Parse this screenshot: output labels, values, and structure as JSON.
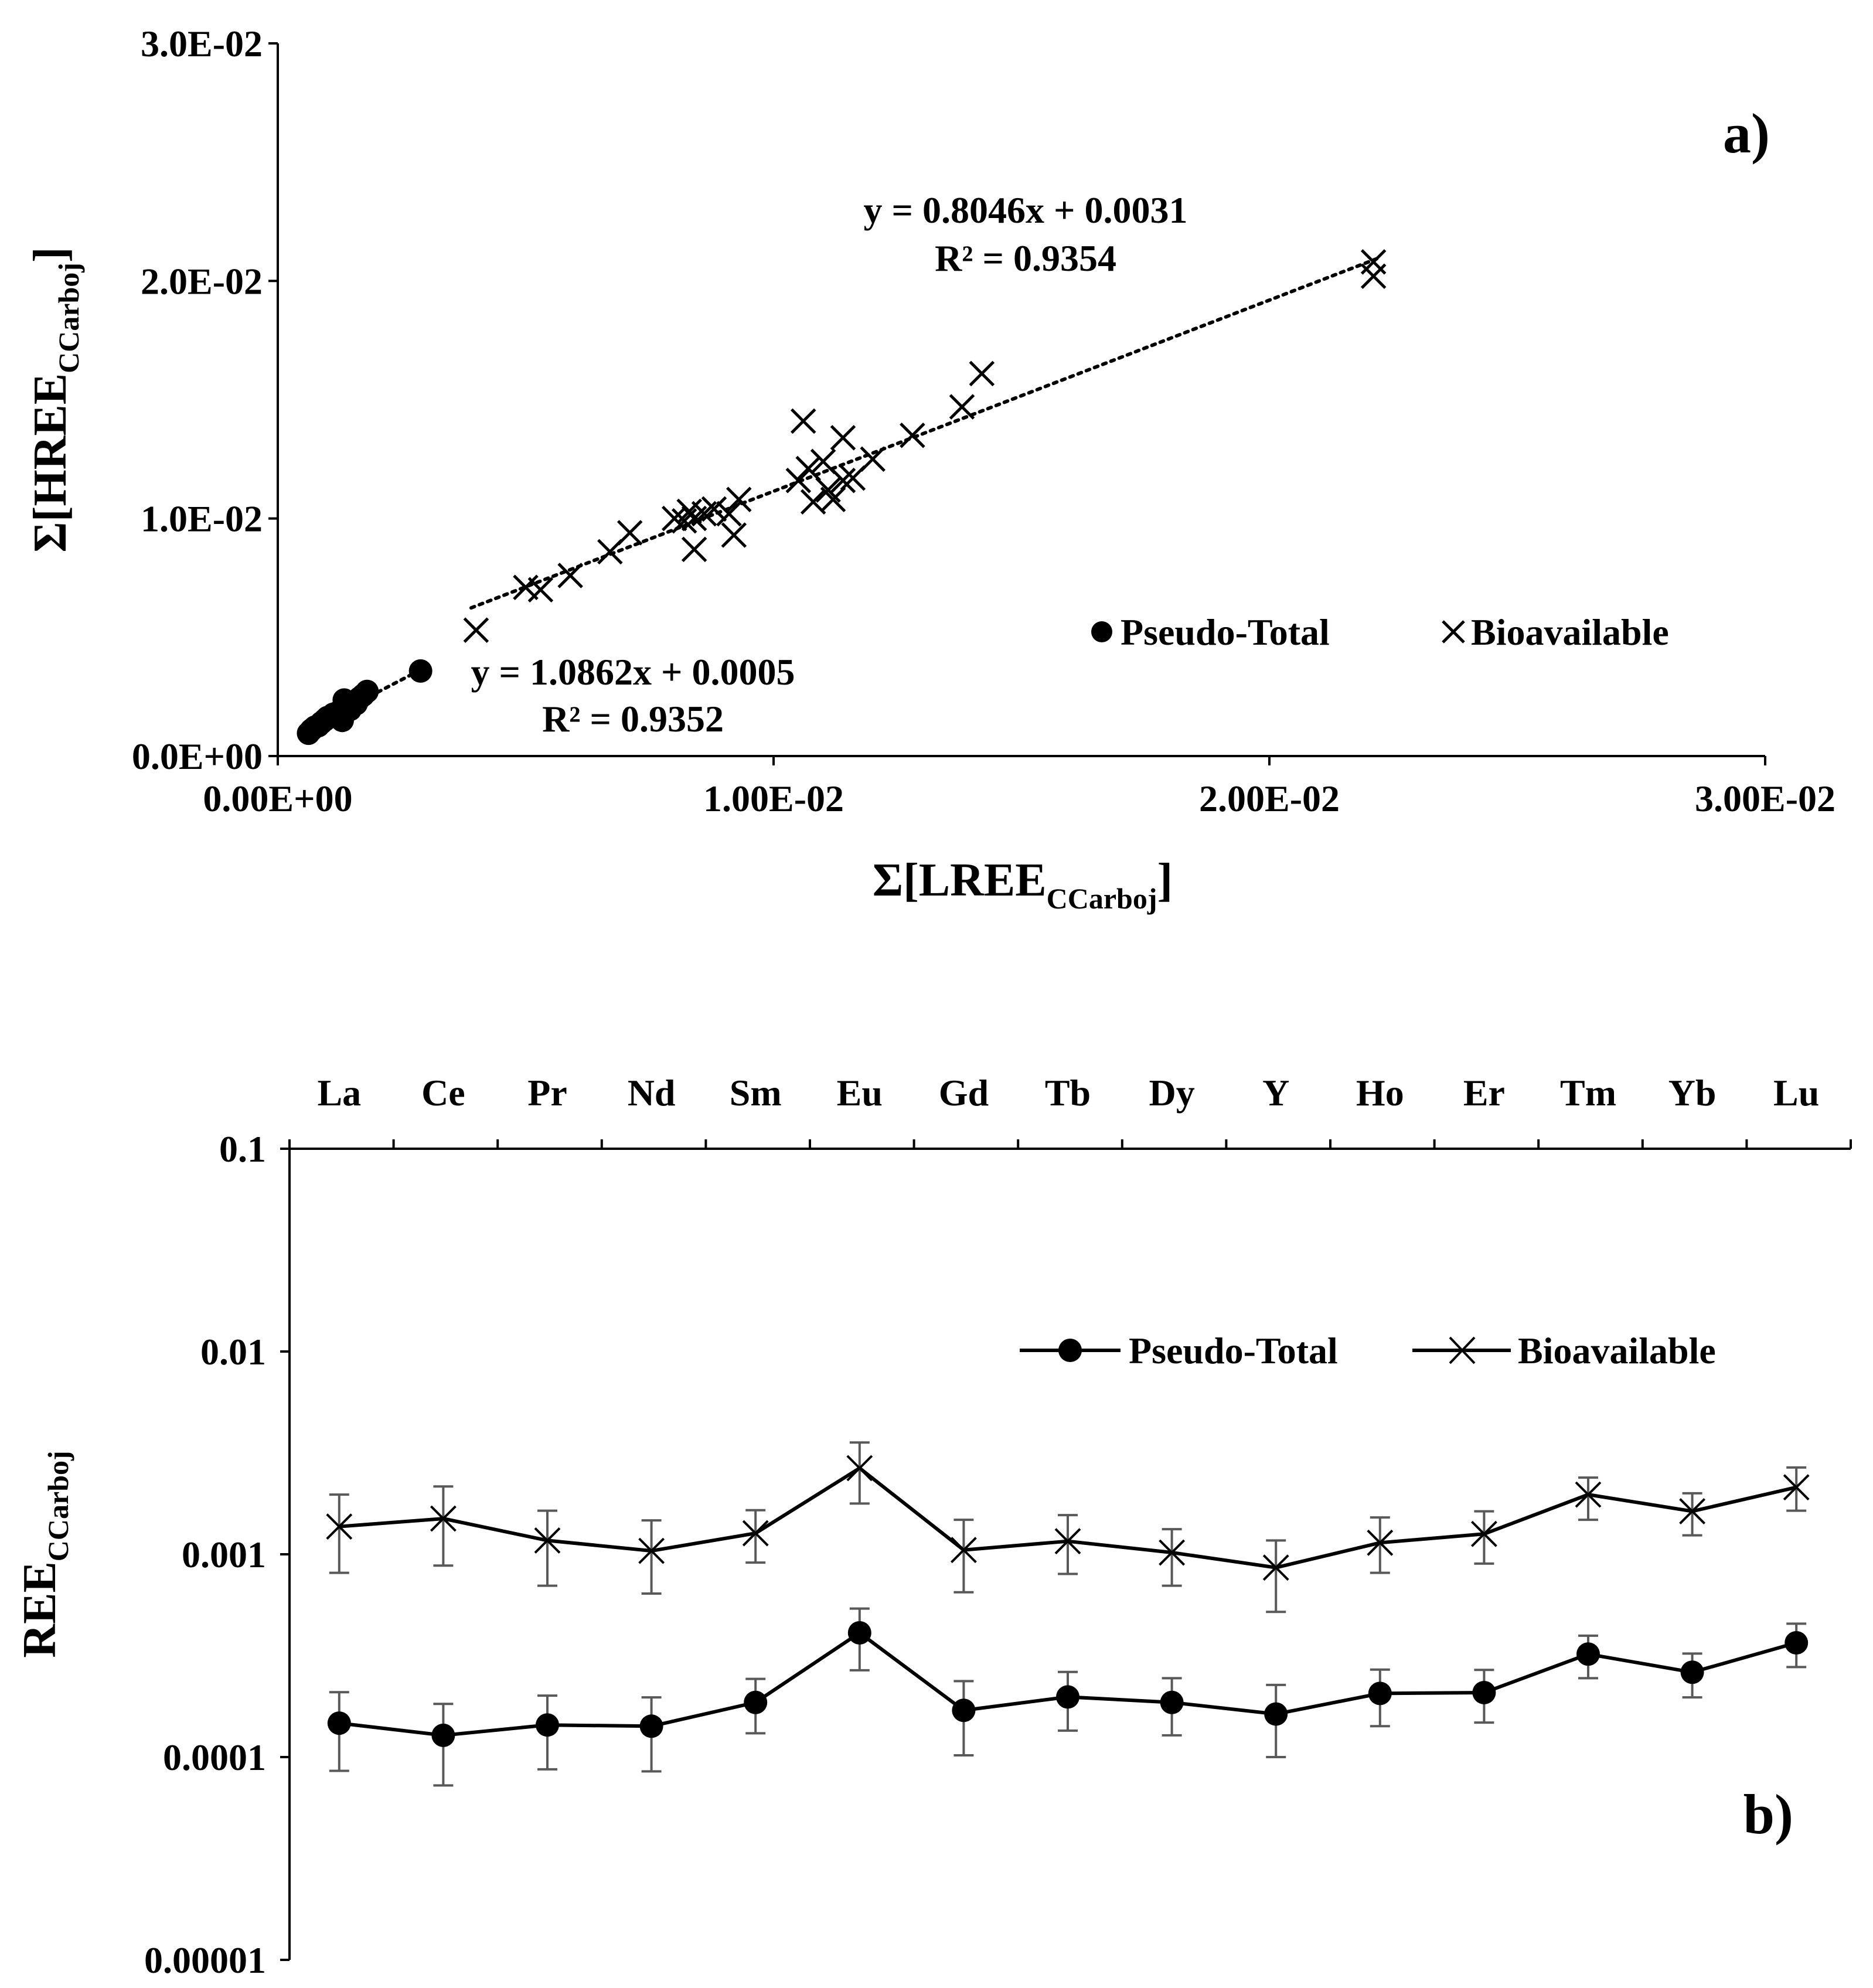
{
  "colors": {
    "ink": "#000000",
    "errorbar": "#595959",
    "background": "#ffffff"
  },
  "chart_data": [
    {
      "panel": "a)",
      "type": "scatter",
      "xlabel": "Σ[LREE",
      "xlabel_sub": "CCarboj",
      "xlabel_close": "]",
      "ylabel": "Σ[HREE",
      "ylabel_sub": "CCarboj",
      "ylabel_close": "]",
      "xlim": [
        0,
        0.03
      ],
      "ylim": [
        0,
        0.03
      ],
      "xticks": [
        0,
        0.01,
        0.02,
        0.03
      ],
      "xtick_labels": [
        "0.00E+00",
        "1.00E-02",
        "2.00E-02",
        "3.00E-02"
      ],
      "yticks": [
        0,
        0.01,
        0.02,
        0.03
      ],
      "ytick_labels": [
        "0.0E+00",
        "1.0E-02",
        "2.0E-02",
        "3.0E-02"
      ],
      "legend_position": "right, middle",
      "series": [
        {
          "name": "Pseudo-Total",
          "marker": "circle",
          "trendline": {
            "equation": "y = 1.0862x + 0.0005",
            "r2": "R² = 0.9352",
            "slope": 1.0862,
            "intercept": 0.0005,
            "x_range": [
              0.0006,
              0.0029
            ]
          },
          "points": [
            [
              0.00062,
              0.00096
            ],
            [
              0.00068,
              0.0011
            ],
            [
              0.00075,
              0.00122
            ],
            [
              0.00082,
              0.00128
            ],
            [
              0.00088,
              0.0014
            ],
            [
              0.00095,
              0.00152
            ],
            [
              0.001,
              0.00162
            ],
            [
              0.00108,
              0.00168
            ],
            [
              0.00112,
              0.00176
            ],
            [
              0.0012,
              0.00182
            ],
            [
              0.00126,
              0.0019
            ],
            [
              0.0013,
              0.0015
            ],
            [
              0.00134,
              0.00236
            ],
            [
              0.0014,
              0.0021
            ],
            [
              0.00146,
              0.00196
            ],
            [
              0.00152,
              0.00224
            ],
            [
              0.00158,
              0.0022
            ],
            [
              0.00165,
              0.00244
            ],
            [
              0.00172,
              0.00256
            ],
            [
              0.0018,
              0.00272
            ],
            [
              0.00288,
              0.00358
            ]
          ]
        },
        {
          "name": "Bioavailable",
          "marker": "x",
          "trendline": {
            "equation": "y = 0.8046x + 0.0031",
            "r2": "R² = 0.9354",
            "slope": 0.8046,
            "intercept": 0.0031,
            "x_range": [
              0.0039,
              0.0222
            ]
          },
          "points": [
            [
              0.004,
              0.0053
            ],
            [
              0.005,
              0.0071
            ],
            [
              0.0053,
              0.007
            ],
            [
              0.0059,
              0.0076
            ],
            [
              0.0067,
              0.0086
            ],
            [
              0.0071,
              0.0094
            ],
            [
              0.008,
              0.01
            ],
            [
              0.0082,
              0.0099
            ],
            [
              0.0083,
              0.0103
            ],
            [
              0.0084,
              0.01
            ],
            [
              0.0084,
              0.0087
            ],
            [
              0.0086,
              0.0102
            ],
            [
              0.0088,
              0.0104
            ],
            [
              0.0091,
              0.0102
            ],
            [
              0.0092,
              0.0093
            ],
            [
              0.0093,
              0.0108
            ],
            [
              0.0106,
              0.0141
            ],
            [
              0.0105,
              0.0116
            ],
            [
              0.0107,
              0.0121
            ],
            [
              0.0108,
              0.0107
            ],
            [
              0.011,
              0.0124
            ],
            [
              0.0111,
              0.0112
            ],
            [
              0.0112,
              0.0108
            ],
            [
              0.0114,
              0.0116
            ],
            [
              0.0114,
              0.0134
            ],
            [
              0.0116,
              0.0117
            ],
            [
              0.012,
              0.0125
            ],
            [
              0.0128,
              0.0135
            ],
            [
              0.0138,
              0.0147
            ],
            [
              0.0142,
              0.0161
            ],
            [
              0.0221,
              0.0202
            ],
            [
              0.0221,
              0.0208
            ]
          ]
        }
      ]
    },
    {
      "panel": "b)",
      "type": "line",
      "scale": "log",
      "ylabel": "REE",
      "ylabel_sub": "CCarboj",
      "categories": [
        "La",
        "Ce",
        "Pr",
        "Nd",
        "Sm",
        "Eu",
        "Gd",
        "Tb",
        "Dy",
        "Y",
        "Ho",
        "Er",
        "Tm",
        "Yb",
        "Lu"
      ],
      "ylim": [
        1e-05,
        0.1
      ],
      "yticks": [
        1e-05,
        0.0001,
        0.001,
        0.01,
        0.1
      ],
      "ytick_labels": [
        "0.00001",
        "0.0001",
        "0.001",
        "0.01",
        "0.1"
      ],
      "legend_position": "top-right",
      "series": [
        {
          "name": "Pseudo-Total",
          "marker": "circle",
          "values": [
            0.000147,
            0.000128,
            0.000144,
            0.000142,
            0.000186,
            0.00041,
            0.00017,
            0.000198,
            0.000186,
            0.000163,
            0.000206,
            0.000208,
            0.000322,
            0.000262,
            0.000366
          ],
          "err_low": [
            8.55e-05,
            7.25e-05,
            8.7e-05,
            8.5e-05,
            0.000131,
            0.000268,
            0.000102,
            0.000135,
            0.000128,
            0.0001,
            0.000142,
            0.000148,
            0.000245,
            0.000197,
            0.000278
          ],
          "err_high": [
            0.000209,
            0.000183,
            0.000201,
            0.000197,
            0.000243,
            0.00054,
            0.000237,
            0.000263,
            0.000245,
            0.000227,
            0.00027,
            0.000269,
            0.000397,
            0.000324,
            0.000455
          ]
        },
        {
          "name": "Bioavailable",
          "marker": "x",
          "values": [
            0.00137,
            0.0015,
            0.00117,
            0.00104,
            0.00127,
            0.00266,
            0.00105,
            0.00116,
            0.00102,
            0.00086,
            0.00114,
            0.00126,
            0.00197,
            0.00163,
            0.00214
          ],
          "err_low": [
            0.00081,
            0.00088,
            0.0007,
            0.00064,
            0.00091,
            0.00178,
            0.00065,
            0.0008,
            0.0007,
            0.00052,
            0.00081,
            0.0009,
            0.00148,
            0.00124,
            0.00164
          ],
          "err_high": [
            0.00197,
            0.00216,
            0.00164,
            0.00147,
            0.00165,
            0.00356,
            0.00148,
            0.00156,
            0.00133,
            0.00117,
            0.00152,
            0.00163,
            0.00239,
            0.002,
            0.00268
          ]
        }
      ]
    }
  ]
}
